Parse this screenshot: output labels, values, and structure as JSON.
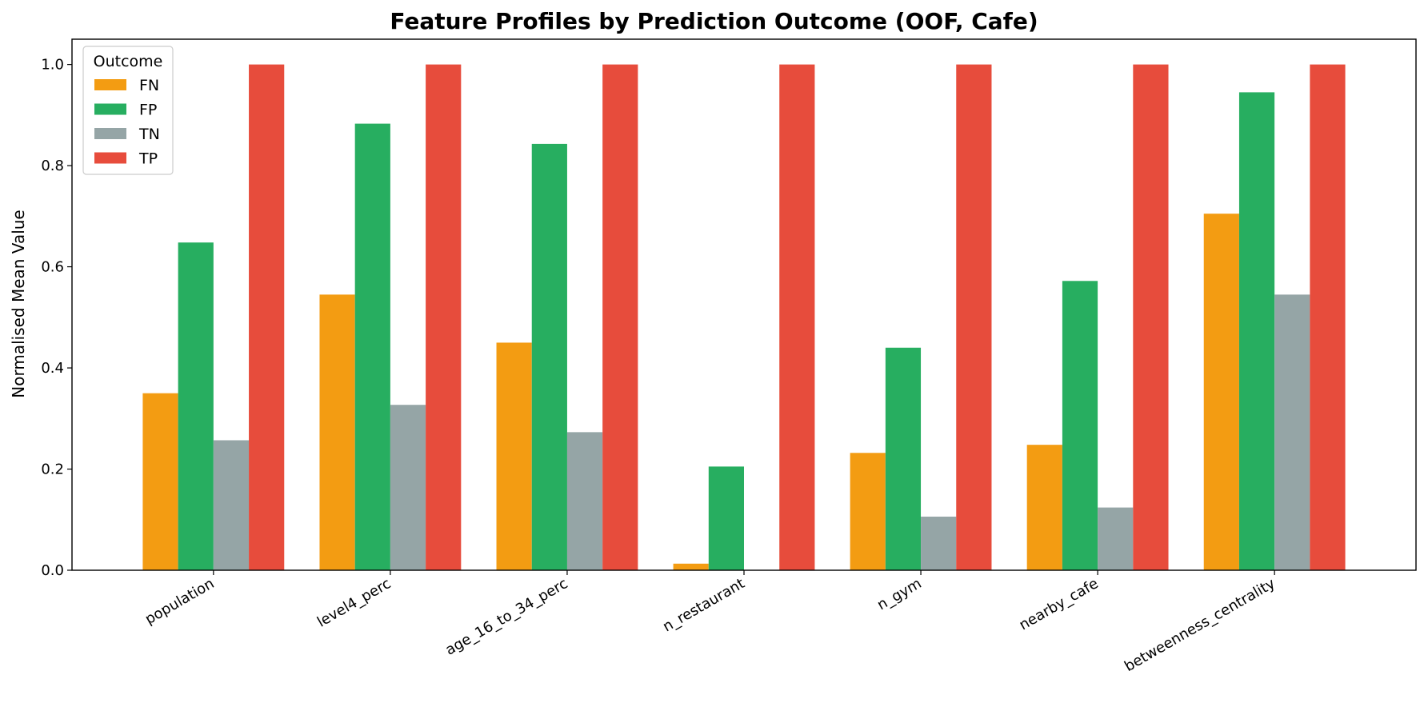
{
  "chart_data": {
    "type": "bar",
    "title": "Feature Profiles by Prediction Outcome (OOF, Cafe)",
    "xlabel": "",
    "ylabel": "Normalised Mean Value",
    "ylim": [
      0,
      1.05
    ],
    "yticks": [
      "0.0",
      "0.2",
      "0.4",
      "0.6",
      "0.8",
      "1.0"
    ],
    "grid": false,
    "legend": {
      "title": "Outcome",
      "position": "top-left"
    },
    "categories": [
      "population",
      "level4_perc",
      "age_16_to_34_perc",
      "n_restaurant",
      "n_gym",
      "nearby_cafe",
      "betweenness_centrality"
    ],
    "series": [
      {
        "name": "FN",
        "color": "#f39c12",
        "values": [
          0.35,
          0.545,
          0.45,
          0.013,
          0.232,
          0.248,
          0.705
        ]
      },
      {
        "name": "FP",
        "color": "#27ae60",
        "values": [
          0.648,
          0.883,
          0.843,
          0.205,
          0.44,
          0.572,
          0.945
        ]
      },
      {
        "name": "TN",
        "color": "#95a5a6",
        "values": [
          0.257,
          0.327,
          0.273,
          0.0,
          0.106,
          0.124,
          0.545
        ]
      },
      {
        "name": "TP",
        "color": "#e74c3c",
        "values": [
          1.0,
          1.0,
          1.0,
          1.0,
          1.0,
          1.0,
          1.0
        ]
      }
    ]
  }
}
